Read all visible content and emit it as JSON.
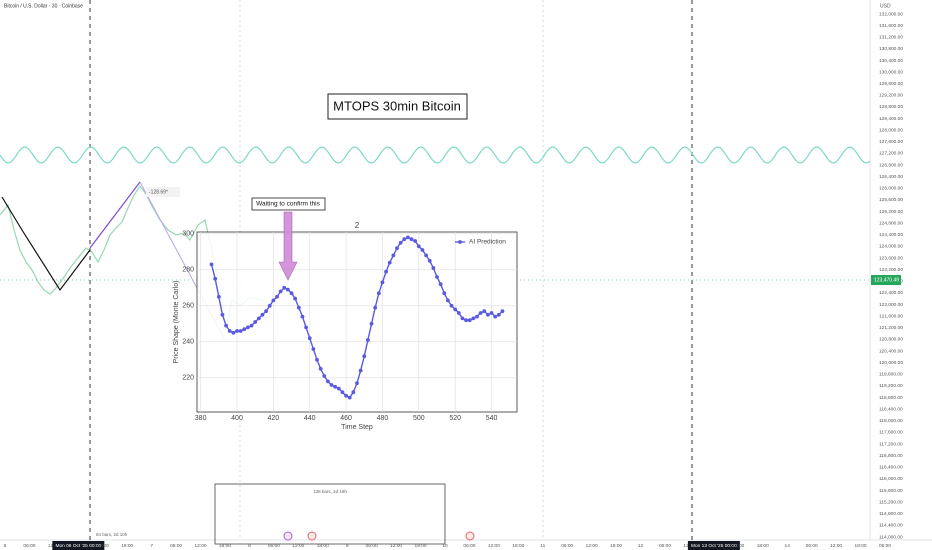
{
  "header": {
    "symbol": "Bitcoin / U.S. Dollar · 30 · Coinbase",
    "currency": "USD"
  },
  "banner": "MTOPS 30min Bitcoin",
  "annotations": {
    "waiting": "Waiting to confirm this",
    "peak": "-128.69*",
    "range_long": "138 bars, 2d 18h",
    "range_short": "84 bars, 2d 10h"
  },
  "price_axis": {
    "current": "123,470.49",
    "labels": [
      "132,000.00",
      "131,600.00",
      "131,200.00",
      "130,800.00",
      "130,400.00",
      "130,000.00",
      "129,600.00",
      "129,200.00",
      "128,800.00",
      "128,400.00",
      "128,000.00",
      "127,600.00",
      "127,200.00",
      "126,800.00",
      "126,400.00",
      "126,000.00",
      "125,600.00",
      "125,200.00",
      "124,800.00",
      "124,400.00",
      "124,000.00",
      "123,600.00",
      "123,200.00",
      "122,800.00",
      "122,400.00",
      "122,000.00",
      "121,600.00",
      "121,200.00",
      "120,800.00",
      "120,400.00",
      "120,000.00",
      "119,600.00",
      "119,200.00",
      "118,800.00",
      "118,400.00",
      "118,000.00",
      "117,600.00",
      "117,200.00",
      "116,800.00",
      "116,400.00",
      "116,000.00",
      "115,600.00",
      "115,200.00",
      "114,800.00",
      "114,400.00",
      "114,000.00"
    ]
  },
  "time_axis": {
    "labels": [
      "5",
      "06:00",
      "12:00",
      "Mon 06 Oct '25  00:00",
      "12:00",
      "18:00",
      "7",
      "06:00",
      "12:00",
      "18:00",
      "8",
      "06:00",
      "12:00",
      "18:00",
      "9",
      "06:00",
      "12:00",
      "18:00",
      "10",
      "06:00",
      "12:00",
      "18:00",
      "11",
      "06:00",
      "12:00",
      "18:00",
      "12",
      "06:00",
      "12:00",
      "Mon 13 Oct '25  00:00",
      "12:00",
      "18:00",
      "14",
      "06:00",
      "12:00",
      "18:00",
      "06:00"
    ]
  },
  "chart_data": {
    "type": "line",
    "title": "2",
    "x_label": "Time Step",
    "y_label": "Price Shape (Monte Carlo)",
    "grid": true,
    "legend": "upper right",
    "xlim": [
      378,
      554
    ],
    "ylim": [
      201,
      301
    ],
    "xticks": [
      380,
      400,
      420,
      440,
      460,
      480,
      500,
      520,
      540
    ],
    "yticks": [
      220,
      240,
      260,
      280,
      300
    ],
    "x": [
      386,
      388,
      390,
      392,
      394,
      396,
      398,
      400,
      402,
      404,
      406,
      408,
      410,
      412,
      414,
      416,
      418,
      420,
      422,
      424,
      426,
      428,
      430,
      432,
      434,
      436,
      438,
      440,
      442,
      444,
      446,
      448,
      450,
      452,
      454,
      456,
      458,
      460,
      462,
      464,
      466,
      468,
      470,
      472,
      474,
      476,
      478,
      480,
      482,
      484,
      486,
      488,
      490,
      492,
      494,
      496,
      498,
      500,
      502,
      504,
      506,
      508,
      510,
      512,
      514,
      516,
      518,
      520,
      522,
      524,
      526,
      528,
      530,
      532,
      534,
      536,
      538,
      540,
      542,
      544,
      546
    ],
    "series": [
      {
        "name": "AI Prediction",
        "color": "#5a5ae0",
        "values": [
          283,
          275,
          265,
          255,
          249,
          246,
          245,
          246,
          246,
          247,
          248,
          249,
          251,
          253,
          255,
          257,
          260,
          263,
          265,
          268,
          270,
          269,
          267,
          264,
          259,
          254,
          248,
          242,
          236,
          230,
          225,
          221,
          218,
          216,
          215,
          214,
          212,
          210,
          209,
          212,
          217,
          224,
          232,
          241,
          250,
          259,
          267,
          273,
          279,
          284,
          288,
          292,
          295,
          297,
          298,
          297,
          296,
          293,
          291,
          288,
          285,
          281,
          276,
          272,
          267,
          263,
          260,
          258,
          256,
          253,
          252,
          252,
          253,
          254,
          256,
          257,
          255,
          256,
          254,
          255,
          257
        ]
      }
    ]
  }
}
